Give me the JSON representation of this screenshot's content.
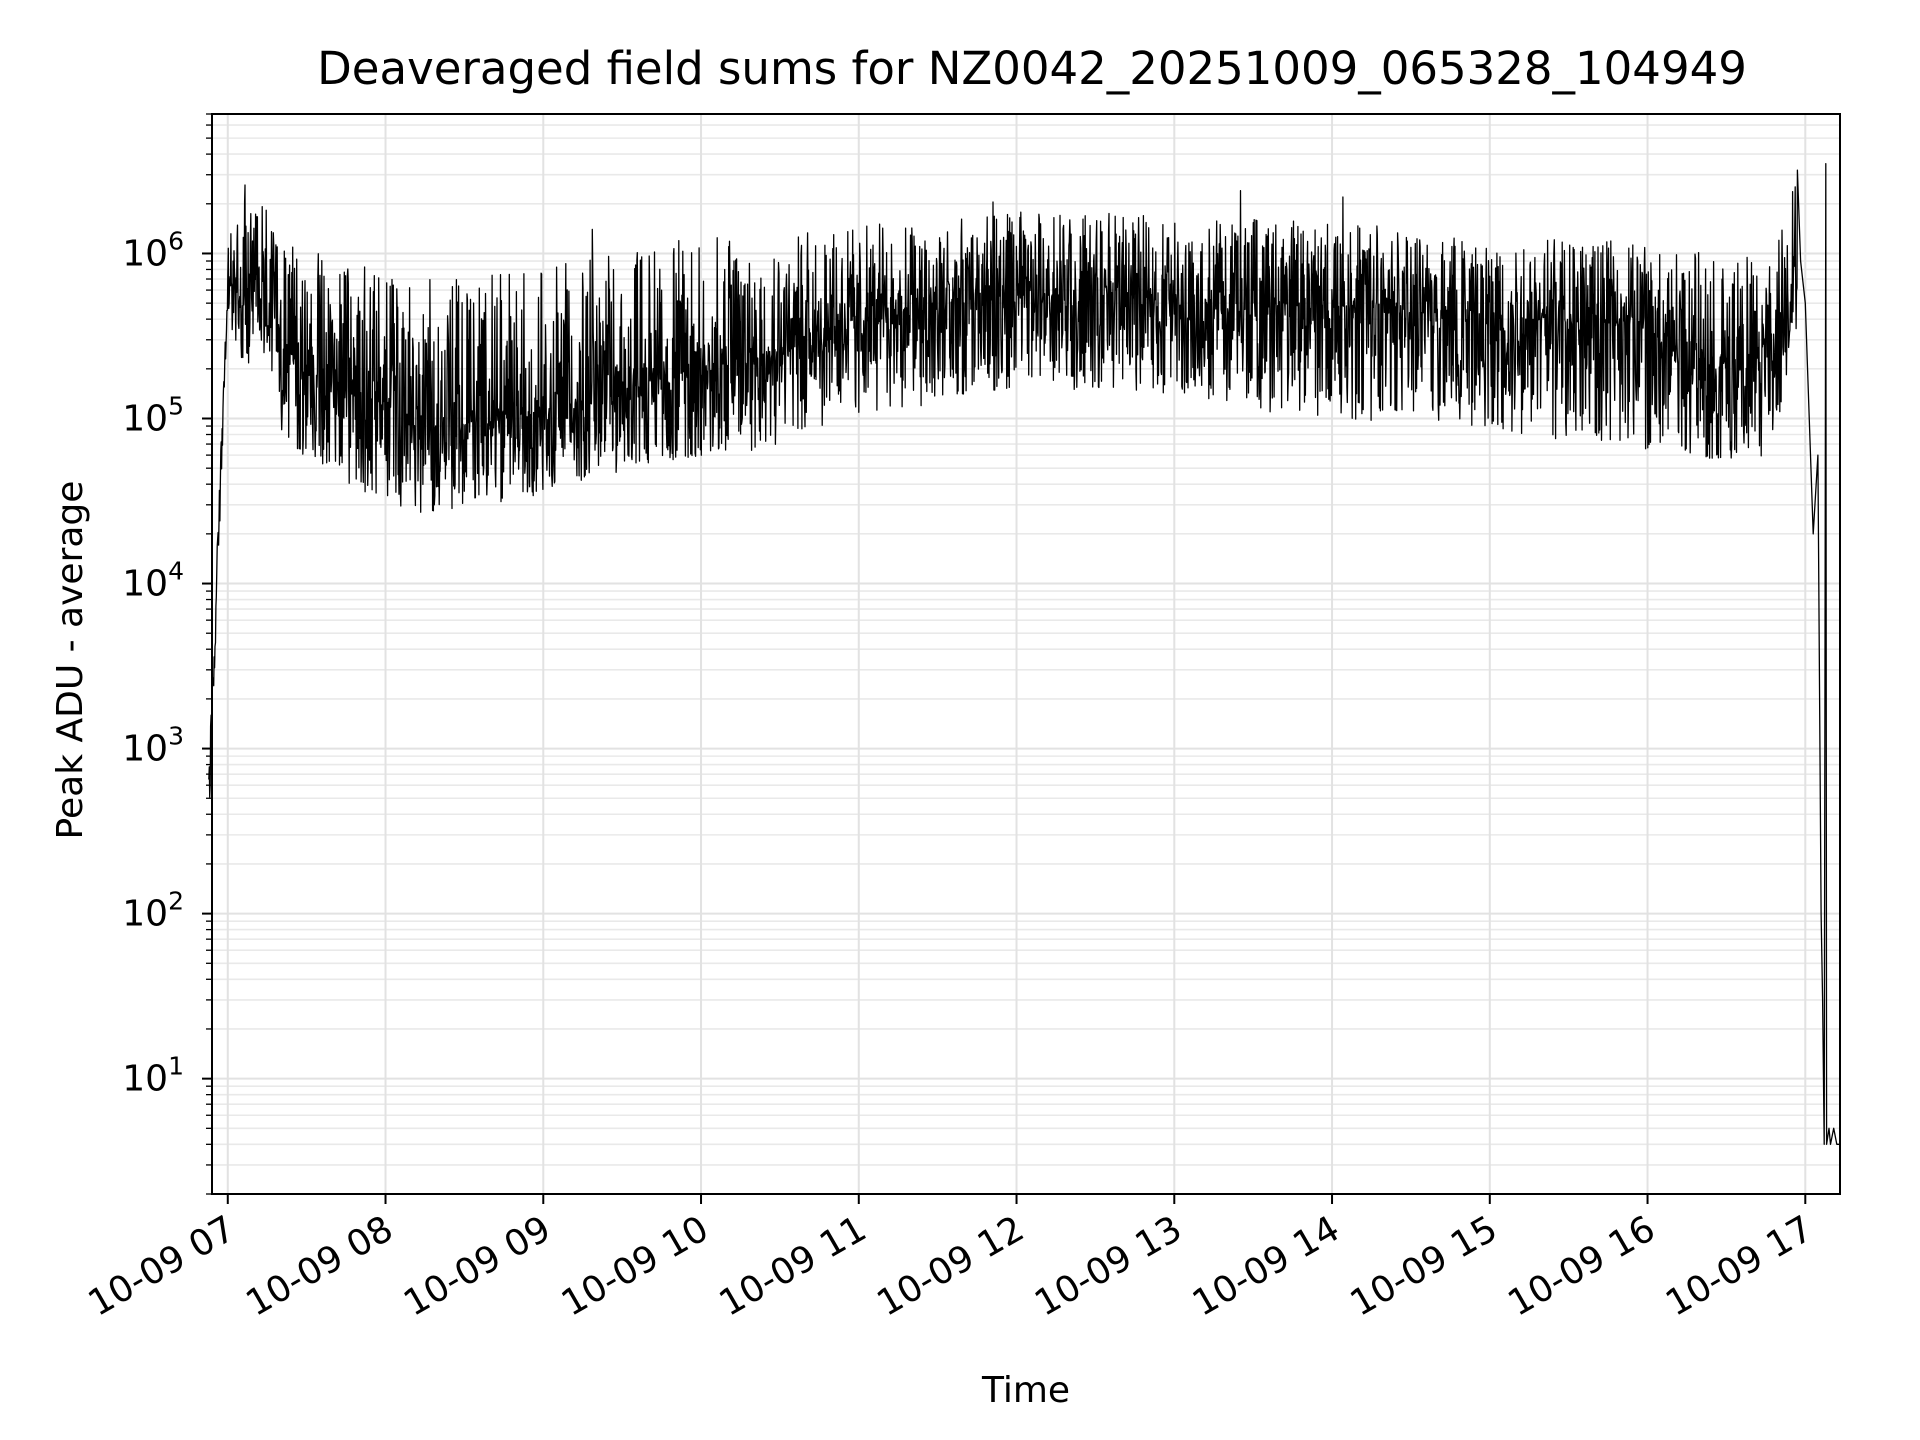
{
  "chart_data": {
    "type": "line",
    "title": "Deaveraged field sums for NZ0042_20251009_065328_104949",
    "xlabel": "Time",
    "ylabel": "Peak ADU - average",
    "yscale": "log",
    "ylim": [
      2,
      7000000
    ],
    "xlim_hours": [
      6.9,
      17.22
    ],
    "grid": true,
    "x_tick_hours": [
      7,
      8,
      9,
      10,
      11,
      12,
      13,
      14,
      15,
      16,
      17
    ],
    "x_tick_labels": [
      "10-09 07",
      "10-09 08",
      "10-09 09",
      "10-09 10",
      "10-09 11",
      "10-09 12",
      "10-09 13",
      "10-09 14",
      "10-09 15",
      "10-09 16",
      "10-09 17"
    ],
    "y_tick_values": [
      10,
      100,
      1000,
      10000,
      100000,
      1000000
    ],
    "y_tick_labels": [
      {
        "base": "10",
        "exp": "1"
      },
      {
        "base": "10",
        "exp": "2"
      },
      {
        "base": "10",
        "exp": "3"
      },
      {
        "base": "10",
        "exp": "4"
      },
      {
        "base": "10",
        "exp": "5"
      },
      {
        "base": "10",
        "exp": "6"
      }
    ],
    "series": [
      {
        "name": "Peak ADU - average",
        "color": "#000000",
        "envelope": {
          "hours": [
            6.88,
            7.0,
            7.2,
            7.4,
            7.6,
            7.8,
            8.0,
            8.2,
            8.4,
            8.6,
            8.8,
            9.0,
            9.2,
            9.4,
            9.6,
            9.8,
            10.0,
            10.2,
            10.4,
            10.6,
            10.8,
            11.0,
            11.2,
            11.4,
            11.6,
            11.8,
            12.0,
            12.2,
            12.4,
            12.6,
            12.8,
            13.0,
            13.2,
            13.4,
            13.6,
            13.8,
            14.0,
            14.2,
            14.4,
            14.6,
            14.8,
            15.0,
            15.2,
            15.4,
            15.6,
            15.8,
            16.0,
            16.2,
            16.4,
            16.6,
            16.8,
            16.95
          ],
          "median": [
            1000,
            700000,
            600000,
            250000,
            180000,
            150000,
            120000,
            90000,
            85000,
            95000,
            100000,
            110000,
            120000,
            140000,
            160000,
            180000,
            200000,
            220000,
            250000,
            300000,
            350000,
            400000,
            420000,
            450000,
            480000,
            520000,
            550000,
            560000,
            560000,
            560000,
            540000,
            520000,
            500000,
            500000,
            500000,
            480000,
            480000,
            470000,
            460000,
            450000,
            430000,
            420000,
            400000,
            400000,
            390000,
            380000,
            360000,
            300000,
            200000,
            200000,
            300000,
            800000
          ],
          "low": [
            500,
            300000,
            150000,
            65000,
            50000,
            38000,
            32000,
            27000,
            27000,
            30000,
            32000,
            35000,
            40000,
            45000,
            50000,
            55000,
            58000,
            60000,
            65000,
            75000,
            90000,
            100000,
            110000,
            120000,
            130000,
            140000,
            145000,
            150000,
            150000,
            150000,
            145000,
            140000,
            130000,
            120000,
            110000,
            100000,
            100000,
            95000,
            95000,
            90000,
            90000,
            85000,
            80000,
            75000,
            70000,
            65000,
            60000,
            58000,
            55000,
            55000,
            60000,
            300000
          ],
          "high": [
            8000,
            1600000,
            2600000,
            1100000,
            1000000,
            850000,
            800000,
            700000,
            700000,
            750000,
            800000,
            850000,
            900000,
            1000000,
            1100000,
            1200000,
            1250000,
            1300000,
            1300000,
            1350000,
            1400000,
            1500000,
            1550000,
            1600000,
            1650000,
            1700000,
            1800000,
            1800000,
            1800000,
            1750000,
            1700000,
            1700000,
            1650000,
            1650000,
            1600000,
            1600000,
            1600000,
            1550000,
            1500000,
            1450000,
            1400000,
            1350000,
            1300000,
            1300000,
            1250000,
            1200000,
            1150000,
            1100000,
            1000000,
            1000000,
            1100000,
            3200000
          ],
          "cycles_per_step": 22
        },
        "spikes": [
          {
            "hour": 7.11,
            "value": 2600000
          },
          {
            "hour": 9.31,
            "value": 1400000
          },
          {
            "hour": 11.85,
            "value": 2050000
          },
          {
            "hour": 13.42,
            "value": 2400000
          },
          {
            "hour": 14.07,
            "value": 2200000
          },
          {
            "hour": 16.95,
            "value": 3200000
          }
        ],
        "tail": [
          {
            "hour": 16.95,
            "value": 3200000
          },
          {
            "hour": 16.97,
            "value": 900000
          },
          {
            "hour": 17.0,
            "value": 500000
          },
          {
            "hour": 17.05,
            "value": 20000
          },
          {
            "hour": 17.08,
            "value": 60000
          },
          {
            "hour": 17.1,
            "value": 100
          },
          {
            "hour": 17.11,
            "value": 30
          },
          {
            "hour": 17.12,
            "value": 4
          },
          {
            "hour": 17.13,
            "value": 3500000
          },
          {
            "hour": 17.135,
            "value": 4
          },
          {
            "hour": 17.15,
            "value": 5
          },
          {
            "hour": 17.16,
            "value": 4
          },
          {
            "hour": 17.18,
            "value": 5
          },
          {
            "hour": 17.2,
            "value": 4
          },
          {
            "hour": 17.22,
            "value": 4
          }
        ]
      }
    ]
  }
}
